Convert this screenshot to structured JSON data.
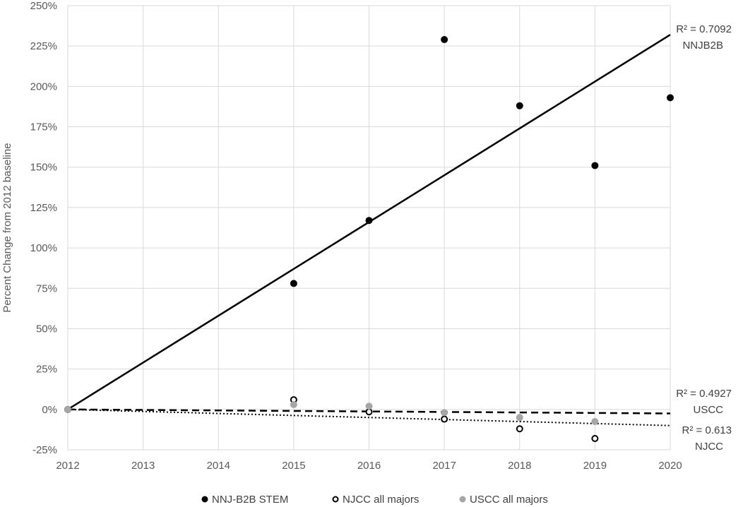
{
  "chart_data": {
    "type": "scatter",
    "title": "",
    "xlabel": "",
    "ylabel": "Percent Change from 2012 baseline",
    "xlim": [
      2012,
      2020
    ],
    "ylim": [
      -25,
      250
    ],
    "x_ticks": [
      "2012",
      "2013",
      "2014",
      "2015",
      "2016",
      "2017",
      "2018",
      "2019",
      "2020"
    ],
    "y_ticks": [
      "-25%",
      "0%",
      "25%",
      "50%",
      "75%",
      "100%",
      "125%",
      "150%",
      "175%",
      "200%",
      "225%",
      "250%"
    ],
    "grid": "horizontal",
    "legend_position": "bottom",
    "series": [
      {
        "name": "NNJ-B2B  STEM",
        "marker": "filled-black",
        "x": [
          2012,
          2015,
          2016,
          2017,
          2018,
          2019,
          2020
        ],
        "y": [
          0,
          78,
          117,
          229,
          188,
          151,
          193
        ]
      },
      {
        "name": "NJCC all majors",
        "marker": "hollow-black",
        "x": [
          2012,
          2015,
          2016,
          2017,
          2018,
          2019
        ],
        "y": [
          0,
          6,
          -1.5,
          -6,
          -12,
          -18
        ]
      },
      {
        "name": "USCC  all majors",
        "marker": "filled-gray",
        "x": [
          2012,
          2015,
          2016,
          2017,
          2018,
          2019
        ],
        "y": [
          0,
          3,
          2,
          -2,
          -5,
          -7.5
        ]
      }
    ],
    "trendlines": [
      {
        "series": "NNJ-B2B  STEM",
        "style": "solid",
        "from": [
          2012,
          0
        ],
        "to": [
          2020,
          232
        ],
        "r2_label": "R² = 0.7092",
        "name_label": "NNJB2B"
      },
      {
        "series": "USCC  all majors",
        "style": "dashed",
        "from": [
          2012,
          0
        ],
        "to": [
          2020,
          -2.5
        ],
        "r2_label": "R² = 0.4927",
        "name_label": "USCC"
      },
      {
        "series": "NJCC all majors",
        "style": "dotted",
        "from": [
          2012,
          0
        ],
        "to": [
          2020,
          -10
        ],
        "r2_label": "R² = 0.613",
        "name_label": "NJCC"
      }
    ],
    "colors": {
      "filled_black": "#000000",
      "filled_gray": "#a6a6a6",
      "grid": "#d9d9d9",
      "axis_text": "#595959"
    }
  }
}
